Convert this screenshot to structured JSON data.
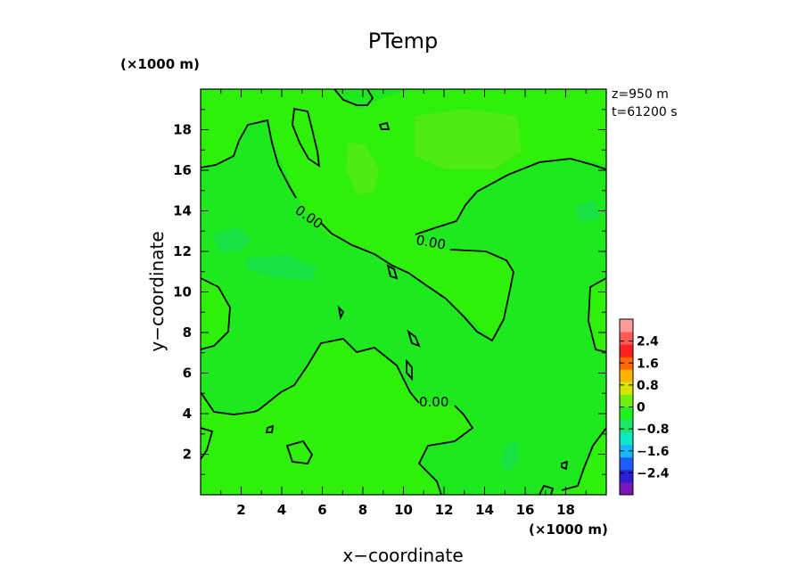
{
  "chart_data": {
    "type": "contour",
    "title": "PTemp",
    "xlabel": "x−coordinate",
    "ylabel": "y−coordinate",
    "x_unit": "(×1000 m)",
    "y_unit": "(×1000 m)",
    "xlim": [
      0,
      20
    ],
    "ylim": [
      0,
      20
    ],
    "x_ticks": [
      "2",
      "4",
      "6",
      "8",
      "10",
      "12",
      "14",
      "16",
      "18"
    ],
    "y_ticks": [
      "2",
      "4",
      "6",
      "8",
      "10",
      "12",
      "14",
      "16",
      "18"
    ],
    "annotations": [
      "z=950 m",
      "t=61200 s"
    ],
    "contour_labels": [
      "0.00",
      "0.00",
      "0.00"
    ],
    "colorbar": {
      "tick_labels": [
        "2.4",
        "1.6",
        "0.8",
        "0",
        "−0.8",
        "−1.6",
        "−2.4"
      ],
      "tick_values": [
        2.4,
        1.6,
        0.8,
        0,
        -0.8,
        -1.6,
        -2.4
      ],
      "range": [
        -3.2,
        3.2
      ],
      "colors": [
        "#7a17b5",
        "#2b1fd6",
        "#1f5cff",
        "#18b7ff",
        "#10e6c8",
        "#1ae66a",
        "#1ef01e",
        "#6ef00c",
        "#d6e600",
        "#ffb400",
        "#ff6a00",
        "#ff2020",
        "#ff5a5a",
        "#ff9a9a"
      ]
    },
    "fill_colors": {
      "background": "#1ee81e",
      "positive": "#2ef00a",
      "strong_positive": "#55e815",
      "negative": "#18e04a"
    },
    "grid": false
  }
}
